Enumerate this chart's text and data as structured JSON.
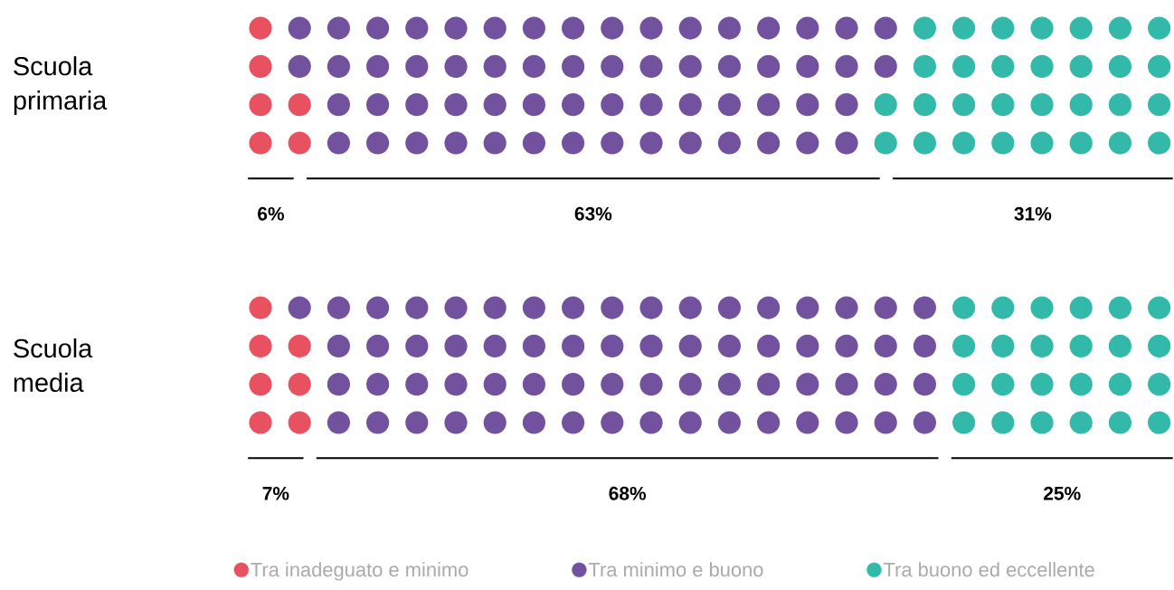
{
  "chart_data": [
    {
      "type": "other",
      "title": "Scuola primaria",
      "values": [
        6,
        63,
        31
      ],
      "colors": [
        "#e8515f",
        "#72529e",
        "#32b9aa"
      ],
      "value_labels": [
        "6%",
        "63%",
        "31%"
      ]
    },
    {
      "type": "other",
      "title": "Scuola media",
      "categories": [
        "Tra inadeguato e minimo",
        "Tra minimo e buono",
        "Tra buono ed eccellente"
      ],
      "values": [
        7,
        68,
        25
      ],
      "colors": [
        "#e8515f",
        "#72529e",
        "#32b9aa"
      ],
      "value_labels": [
        "7%",
        "68%",
        "25%"
      ]
    }
  ]
}
